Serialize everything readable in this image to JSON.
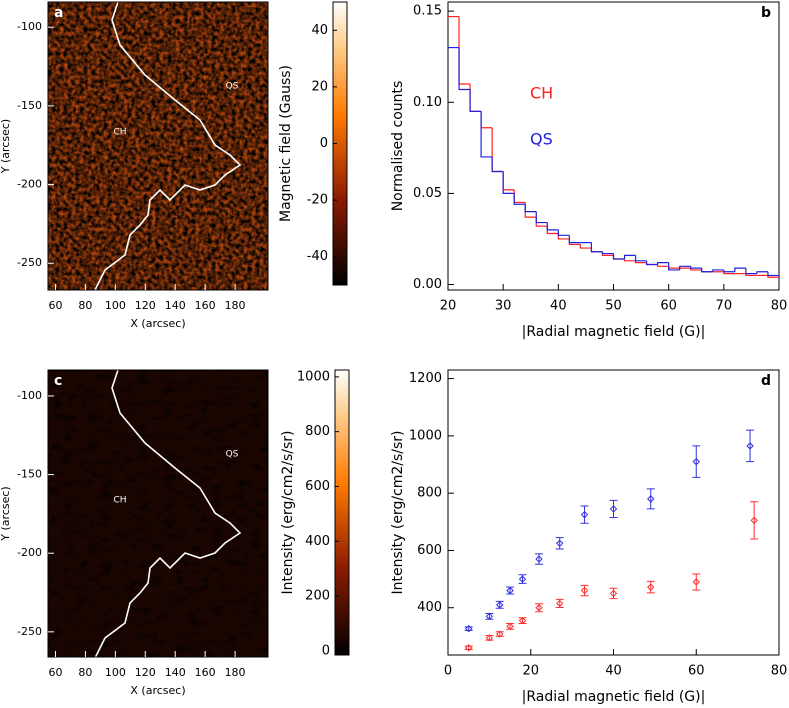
{
  "chart_data": [
    {
      "type": "image",
      "label": "a",
      "xlabel": "X (arcsec)",
      "ylabel": "Y (arcsec)",
      "xlim": [
        55,
        202
      ],
      "ylim": [
        -267,
        -84
      ],
      "xticks": [
        60,
        80,
        100,
        120,
        140,
        160,
        180
      ],
      "yticks": [
        -100,
        -150,
        -200,
        -250
      ],
      "annotations": [
        "QS",
        "CH"
      ],
      "colorbar": {
        "label": "Magnetic field (Gauss)",
        "clim": [
          -50,
          50
        ],
        "cticks": [
          40,
          20,
          0,
          -20,
          -40
        ]
      }
    },
    {
      "type": "histogram",
      "label": "b",
      "xlabel": "|Radial magnetic field (G)|",
      "ylabel": "Normalised counts",
      "xlim": [
        20,
        80
      ],
      "ylim": [
        -0.003,
        0.155
      ],
      "xticks": [
        20,
        30,
        40,
        50,
        60,
        70,
        80
      ],
      "yticks": [
        {
          "value": 0,
          "label": "0.00"
        },
        {
          "value": 0.05,
          "label": "0.05"
        },
        {
          "value": 0.1,
          "label": "0.10"
        },
        {
          "value": 0.15,
          "label": "0.15"
        }
      ],
      "bins": [
        20,
        22,
        24,
        26,
        28,
        30,
        32,
        34,
        36,
        38,
        40,
        42,
        44,
        46,
        48,
        50,
        52,
        54,
        56,
        58,
        60,
        62,
        64,
        66,
        68,
        70,
        72,
        74,
        76,
        78,
        80
      ],
      "series": [
        {
          "name": "CH",
          "color": "#ff2020",
          "values": [
            0.147,
            0.11,
            0.095,
            0.086,
            0.062,
            0.052,
            0.045,
            0.037,
            0.032,
            0.028,
            0.025,
            0.022,
            0.02,
            0.018,
            0.016,
            0.014,
            0.013,
            0.012,
            0.011,
            0.01,
            0.009,
            0.009,
            0.008,
            0.007,
            0.007,
            0.006,
            0.006,
            0.005,
            0.005,
            0.004
          ]
        },
        {
          "name": "QS",
          "color": "#2020e0",
          "values": [
            0.13,
            0.107,
            0.095,
            0.07,
            0.062,
            0.05,
            0.044,
            0.04,
            0.034,
            0.03,
            0.027,
            0.023,
            0.023,
            0.018,
            0.017,
            0.014,
            0.016,
            0.013,
            0.011,
            0.012,
            0.008,
            0.01,
            0.009,
            0.007,
            0.008,
            0.007,
            0.009,
            0.006,
            0.007,
            0.005
          ]
        }
      ]
    },
    {
      "type": "image",
      "label": "c",
      "xlabel": "X (arcsec)",
      "ylabel": "Y (arcsec)",
      "xlim": [
        55,
        202
      ],
      "ylim": [
        -266,
        -83.5
      ],
      "xticks": [
        60,
        80,
        100,
        120,
        140,
        160,
        180
      ],
      "yticks": [
        -100,
        -150,
        -200,
        -250
      ],
      "annotations": [
        "QS",
        "CH"
      ],
      "colorbar": {
        "label": "Intensity (erg/cm2/s/sr)",
        "clim": [
          -15,
          1025
        ],
        "cticks": [
          1000,
          800,
          600,
          400,
          200,
          0
        ]
      }
    },
    {
      "type": "errorbar",
      "label": "d",
      "xlabel": "|Radial magnetic field (G)|",
      "ylabel": "Intensity (erg/cm2/s/sr)",
      "xlim": [
        0,
        80
      ],
      "ylim": [
        235,
        1230
      ],
      "xticks": [
        0,
        20,
        40,
        60,
        80
      ],
      "yticks": [
        400,
        600,
        800,
        1000,
        1200
      ],
      "series": [
        {
          "color": "#3030e0",
          "x": [
            5,
            10,
            12.5,
            15,
            18,
            22,
            27,
            33,
            40,
            49,
            60,
            73
          ],
          "values": [
            327,
            370,
            410,
            460,
            500,
            570,
            625,
            725,
            745,
            780,
            910,
            965
          ],
          "errors": [
            6,
            10,
            12,
            12,
            15,
            18,
            20,
            30,
            30,
            35,
            55,
            55
          ]
        },
        {
          "color": "#ff3030",
          "x": [
            5,
            10,
            12.5,
            15,
            18,
            22,
            27,
            33,
            40,
            49,
            60,
            74
          ],
          "values": [
            260,
            295,
            308,
            335,
            355,
            400,
            415,
            460,
            450,
            472,
            490,
            705
          ],
          "errors": [
            6,
            8,
            8,
            10,
            10,
            14,
            14,
            18,
            18,
            20,
            28,
            65
          ]
        }
      ]
    }
  ]
}
